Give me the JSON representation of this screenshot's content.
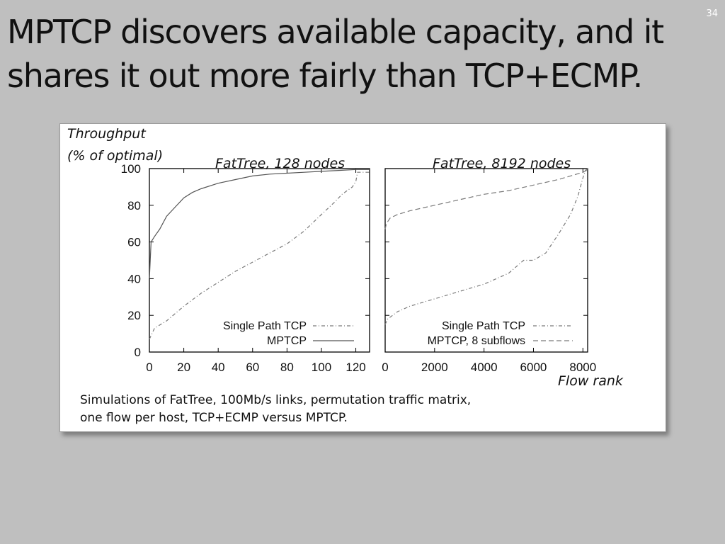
{
  "slide": {
    "number": "34",
    "title_line1": "MPTCP discovers available capacity, and it",
    "title_line2": "shares it out more fairly than TCP+ECMP.",
    "caption_line1": "Simulations of FatTree, 100Mb/s links, permutation traffic matrix,",
    "caption_line2": "one flow per host, TCP+ECMP versus MPTCP."
  },
  "figure": {
    "ylabel_line1": "Throughput",
    "ylabel_line2": "(% of optimal)",
    "xlabel": "Flow rank"
  },
  "chart_data": [
    {
      "type": "line",
      "title": "FatTree, 128 nodes",
      "xlim": [
        0,
        128
      ],
      "ylim": [
        0,
        100
      ],
      "xticks": [
        "0",
        "20",
        "40",
        "60",
        "80",
        "100",
        "120"
      ],
      "xtick_values": [
        0,
        20,
        40,
        60,
        80,
        100,
        120
      ],
      "yticks": [
        "0",
        "20",
        "40",
        "60",
        "80",
        "100"
      ],
      "ytick_values": [
        0,
        20,
        40,
        60,
        80,
        100
      ],
      "legend_position": "bottom-right",
      "series": [
        {
          "name": "Single Path TCP",
          "style": "dash-dot",
          "color": "#7a7a7a",
          "x": [
            0,
            3,
            10,
            20,
            30,
            40,
            50,
            60,
            70,
            80,
            90,
            100,
            108,
            112,
            115,
            118,
            120,
            121,
            128
          ],
          "y": [
            7,
            13,
            17,
            25,
            32,
            38,
            44,
            49,
            54,
            59,
            66,
            75,
            82,
            86,
            88,
            90,
            93,
            98,
            98
          ]
        },
        {
          "name": "MPTCP",
          "style": "solid",
          "color": "#555555",
          "x": [
            0,
            1,
            3,
            6,
            10,
            15,
            20,
            25,
            30,
            40,
            50,
            60,
            70,
            80,
            90,
            100,
            110,
            120,
            128
          ],
          "y": [
            40,
            60,
            63,
            67,
            74,
            79,
            84,
            87,
            89,
            92,
            94,
            96,
            97,
            97.5,
            98,
            98.5,
            99,
            99.5,
            99.5
          ]
        }
      ]
    },
    {
      "type": "line",
      "title": "FatTree, 8192 nodes",
      "xlim": [
        0,
        8192
      ],
      "ylim": [
        0,
        100
      ],
      "xticks": [
        "0",
        "2000",
        "4000",
        "6000",
        "8000"
      ],
      "xtick_values": [
        0,
        2000,
        4000,
        6000,
        8000
      ],
      "yticks": [],
      "ytick_values": [
        0,
        20,
        40,
        60,
        80,
        100
      ],
      "legend_position": "bottom-right",
      "series": [
        {
          "name": "Single Path TCP",
          "style": "dash-dot",
          "color": "#7a7a7a",
          "x": [
            0,
            100,
            500,
            1000,
            2000,
            3000,
            4000,
            5000,
            5600,
            6000,
            6500,
            7000,
            7500,
            7800,
            8000,
            8100,
            8192
          ],
          "y": [
            15,
            18,
            22,
            25,
            29,
            33,
            37,
            43,
            50,
            50,
            54,
            64,
            75,
            85,
            95,
            99,
            100
          ]
        },
        {
          "name": "MPTCP, 8 subflows",
          "style": "dashed",
          "color": "#7a7a7a",
          "x": [
            0,
            50,
            200,
            500,
            1000,
            2000,
            3000,
            4000,
            5000,
            6000,
            7000,
            7500,
            8000,
            8150,
            8192
          ],
          "y": [
            67,
            70,
            73,
            75,
            77,
            80,
            83,
            86,
            88,
            91,
            94,
            96,
            98,
            99,
            100
          ]
        }
      ]
    }
  ]
}
